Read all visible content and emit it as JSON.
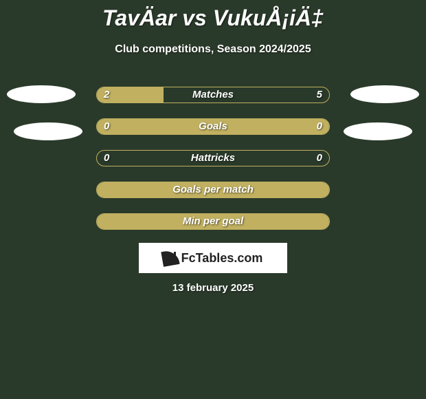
{
  "title": "TavÄar vs VukuÅ¡iÄ‡",
  "subtitle": "Club competitions, Season 2024/2025",
  "theme": {
    "background": "#2a3a2a",
    "bar_fill": "#c0b060",
    "bar_border": "#c0b060",
    "text": "#ffffff"
  },
  "ellipses": {
    "left1": {
      "color": "#ffffff"
    },
    "right1": {
      "color": "#ffffff"
    },
    "left2": {
      "color": "#ffffff"
    },
    "right2": {
      "color": "#ffffff"
    }
  },
  "bars": [
    {
      "label": "Matches",
      "left": "2",
      "right": "5",
      "fill_pct": 28.6
    },
    {
      "label": "Goals",
      "left": "0",
      "right": "0",
      "fill_pct": 100
    },
    {
      "label": "Hattricks",
      "left": "0",
      "right": "0",
      "fill_pct": 0
    },
    {
      "label": "Goals per match",
      "left": "",
      "right": "",
      "fill_pct": 100
    },
    {
      "label": "Min per goal",
      "left": "",
      "right": "",
      "fill_pct": 100
    }
  ],
  "logo": {
    "text": "FcTables.com"
  },
  "date": "13 february 2025"
}
